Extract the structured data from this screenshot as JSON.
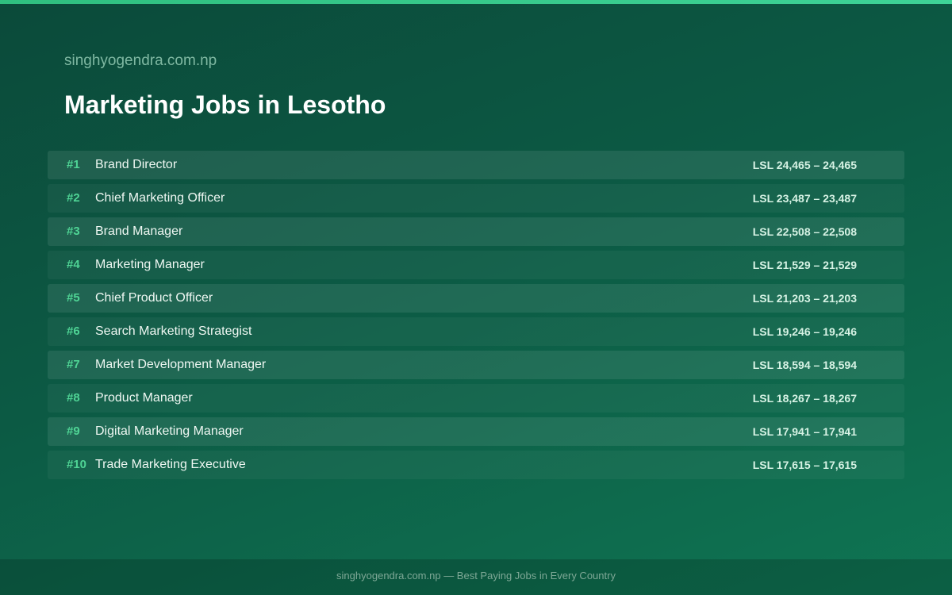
{
  "header": {
    "site": "singhyogendra.com.np",
    "title": "Marketing Jobs in Lesotho"
  },
  "table": {
    "rows": [
      [
        "#1",
        "Brand Director",
        "LSL 24,465 – 24,465"
      ],
      [
        "#2",
        "Chief Marketing Officer",
        "LSL 23,487 – 23,487"
      ],
      [
        "#3",
        "Brand Manager",
        "LSL 22,508 – 22,508"
      ],
      [
        "#4",
        "Marketing Manager",
        "LSL 21,529 – 21,529"
      ],
      [
        "#5",
        "Chief Product Officer",
        "LSL 21,203 – 21,203"
      ],
      [
        "#6",
        "Search Marketing Strategist",
        "LSL 19,246 – 19,246"
      ],
      [
        "#7",
        "Market Development Manager",
        "LSL 18,594 – 18,594"
      ],
      [
        "#8",
        "Product Manager",
        "LSL 18,267 – 18,267"
      ],
      [
        "#9",
        "Digital Marketing Manager",
        "LSL 17,941 – 17,941"
      ],
      [
        "#10",
        "Trade Marketing Executive",
        "LSL 17,615 – 17,615"
      ]
    ]
  },
  "footer": {
    "text": "singhyogendra.com.np — Best Paying Jobs in Every Country"
  }
}
